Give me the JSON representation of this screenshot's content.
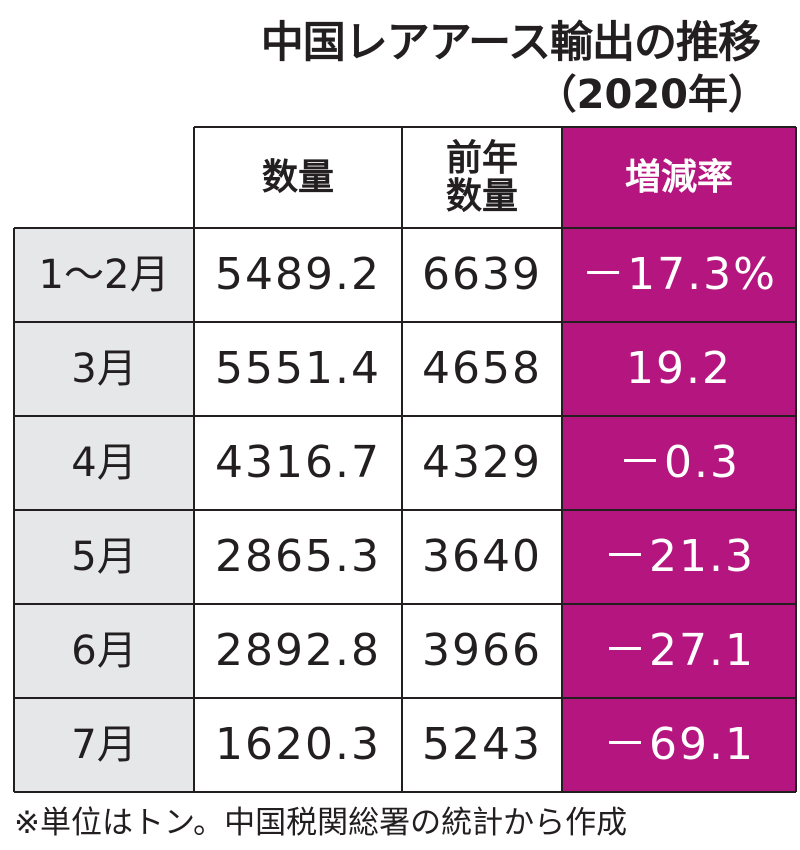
{
  "colors": {
    "rate_column": "#b5157f",
    "month_column": "#e6e7e8",
    "rule": "#231f20"
  },
  "chart_data": {
    "type": "table",
    "title": "中国レアアース輸出の推移",
    "subtitle": "（2020年）",
    "columns": [
      "",
      "数量",
      "前年\n数量",
      "増減率"
    ],
    "rows": [
      [
        "1～2月",
        "5489.2",
        "6639",
        "－17.3%"
      ],
      [
        "3月",
        "5551.4",
        "4658",
        "19.2"
      ],
      [
        "4月",
        "4316.7",
        "4329",
        "－0.3"
      ],
      [
        "5月",
        "2865.3",
        "3640",
        "－21.3"
      ],
      [
        "6月",
        "2892.8",
        "3966",
        "－27.1"
      ],
      [
        "7月",
        "1620.3",
        "5243",
        "－69.1"
      ]
    ],
    "note": "※単位はトン。中国税関総署の統計から作成"
  }
}
